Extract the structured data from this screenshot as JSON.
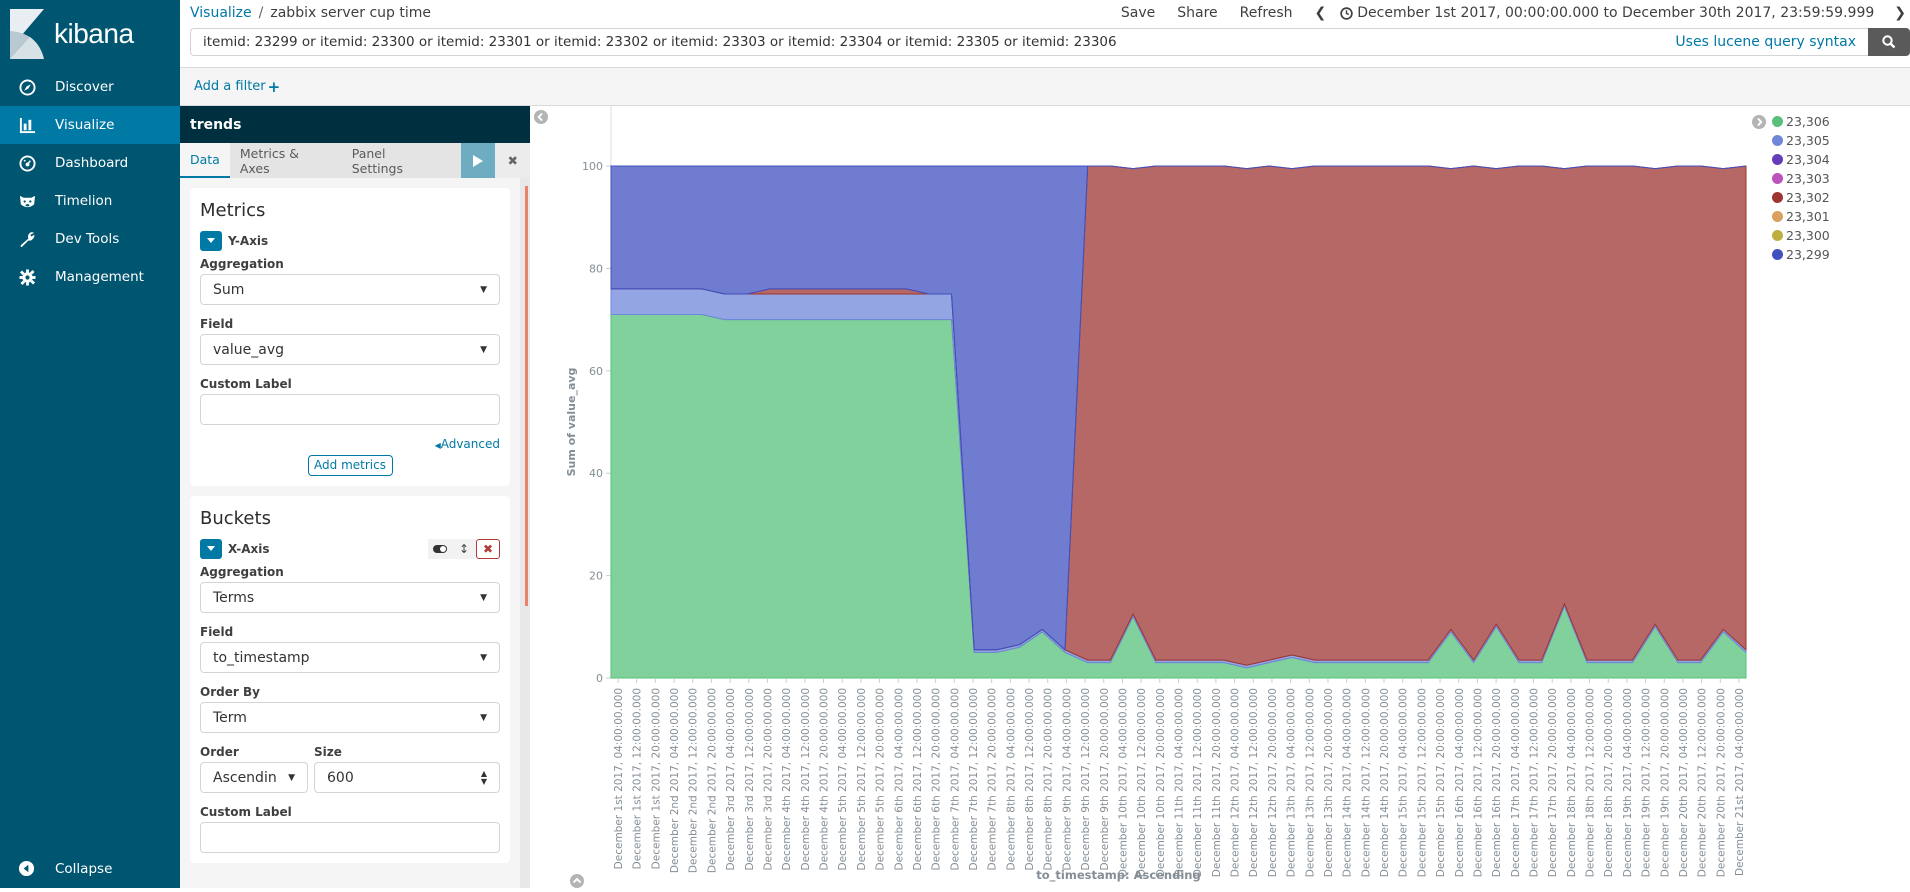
{
  "sidebar": {
    "brand": "kibana",
    "items": [
      {
        "label": "Discover",
        "icon": "compass-icon",
        "active": false
      },
      {
        "label": "Visualize",
        "icon": "bar-chart-icon",
        "active": true
      },
      {
        "label": "Dashboard",
        "icon": "dashboard-icon",
        "active": false
      },
      {
        "label": "Timelion",
        "icon": "timelion-icon",
        "active": false
      },
      {
        "label": "Dev Tools",
        "icon": "wrench-icon",
        "active": false
      },
      {
        "label": "Management",
        "icon": "gear-icon",
        "active": false
      }
    ],
    "collapse_label": "Collapse"
  },
  "topbar": {
    "breadcrumb_root": "Visualize",
    "breadcrumb_sep": "/",
    "breadcrumb_current": "zabbix server cup time",
    "save": "Save",
    "share": "Share",
    "refresh": "Refresh",
    "time_range": "December 1st 2017, 00:00:00.000 to December 30th 2017, 23:59:59.999"
  },
  "query": {
    "value": "itemid: 23299  or itemid: 23300 or itemid: 23301 or itemid: 23302 or itemid: 23303 or itemid: 23304 or itemid: 23305 or itemid: 23306",
    "syntax_hint": "Uses lucene query syntax"
  },
  "filter": {
    "add_label": "Add a filter",
    "add_icon": "+"
  },
  "editor": {
    "title": "trends",
    "tabs": [
      {
        "label": "Data",
        "active": true
      },
      {
        "label": "Metrics & Axes",
        "active": false
      },
      {
        "label": "Panel Settings",
        "active": false
      }
    ],
    "metrics": {
      "heading": "Metrics",
      "agg_title": "Y-Axis",
      "aggregation_label": "Aggregation",
      "aggregation_value": "Sum",
      "field_label": "Field",
      "field_value": "value_avg",
      "custom_label_label": "Custom Label",
      "custom_label_value": "",
      "advanced": "Advanced",
      "add_metrics": "Add metrics"
    },
    "buckets": {
      "heading": "Buckets",
      "agg_title": "X-Axis",
      "aggregation_label": "Aggregation",
      "aggregation_value": "Terms",
      "field_label": "Field",
      "field_value": "to_timestamp",
      "order_by_label": "Order By",
      "order_by_value": "Term",
      "order_label": "Order",
      "order_value": "Ascendin",
      "size_label": "Size",
      "size_value": "600",
      "custom_label_label": "Custom Label"
    }
  },
  "legend": [
    {
      "label": "23,306",
      "color": "#57c17b"
    },
    {
      "label": "23,305",
      "color": "#6f87d8"
    },
    {
      "label": "23,304",
      "color": "#663db8"
    },
    {
      "label": "23,303",
      "color": "#bc52bc"
    },
    {
      "label": "23,302",
      "color": "#9e3533"
    },
    {
      "label": "23,301",
      "color": "#daa05d"
    },
    {
      "label": "23,300",
      "color": "#bfaf40"
    },
    {
      "label": "23,299",
      "color": "#4050bf"
    }
  ],
  "chart_data": {
    "type": "area",
    "stacked": true,
    "title": "",
    "xlabel": "to_timestamp: Ascending",
    "ylabel": "Sum of value_avg",
    "ylim": [
      0,
      100
    ],
    "yticks": [
      0,
      20,
      40,
      60,
      80,
      100
    ],
    "grid": false,
    "legend_position": "right",
    "x_tick_labels": [
      "December 1st 2017, 04:00:00.000",
      "December 1st 2017, 12:00:00.000",
      "December 1st 2017, 20:00:00.000",
      "December 2nd 2017, 04:00:00.000",
      "December 2nd 2017, 12:00:00.000",
      "December 2nd 2017, 20:00:00.000",
      "December 3rd 2017, 04:00:00.000",
      "December 3rd 2017, 12:00:00.000",
      "December 3rd 2017, 20:00:00.000",
      "December 4th 2017, 04:00:00.000",
      "December 4th 2017, 12:00:00.000",
      "December 4th 2017, 20:00:00.000",
      "December 5th 2017, 04:00:00.000",
      "December 5th 2017, 12:00:00.000",
      "December 5th 2017, 20:00:00.000",
      "December 6th 2017, 04:00:00.000",
      "December 6th 2017, 12:00:00.000",
      "December 6th 2017, 20:00:00.000",
      "December 7th 2017, 04:00:00.000",
      "December 7th 2017, 12:00:00.000",
      "December 7th 2017, 20:00:00.000",
      "December 8th 2017, 04:00:00.000",
      "December 8th 2017, 12:00:00.000",
      "December 8th 2017, 20:00:00.000",
      "December 9th 2017, 04:00:00.000",
      "December 9th 2017, 12:00:00.000",
      "December 9th 2017, 20:00:00.000",
      "December 10th 2017, 04:00:00.000",
      "December 10th 2017, 12:00:00.000",
      "December 10th 2017, 20:00:00.000",
      "December 11th 2017, 04:00:00.000",
      "December 11th 2017, 12:00:00.000",
      "December 11th 2017, 20:00:00.000",
      "December 12th 2017, 04:00:00.000",
      "December 12th 2017, 12:00:00.000",
      "December 12th 2017, 20:00:00.000",
      "December 13th 2017, 04:00:00.000",
      "December 13th 2017, 12:00:00.000",
      "December 13th 2017, 20:00:00.000",
      "December 14th 2017, 04:00:00.000",
      "December 14th 2017, 12:00:00.000",
      "December 14th 2017, 20:00:00.000",
      "December 15th 2017, 04:00:00.000",
      "December 15th 2017, 12:00:00.000",
      "December 15th 2017, 20:00:00.000",
      "December 16th 2017, 04:00:00.000",
      "December 16th 2017, 12:00:00.000",
      "December 16th 2017, 20:00:00.000",
      "December 17th 2017, 04:00:00.000",
      "December 17th 2017, 12:00:00.000",
      "December 17th 2017, 20:00:00.000",
      "December 18th 2017, 04:00:00.000",
      "December 18th 2017, 12:00:00.000",
      "December 18th 2017, 20:00:00.000",
      "December 19th 2017, 04:00:00.000",
      "December 19th 2017, 12:00:00.000",
      "December 19th 2017, 20:00:00.000",
      "December 20th 2017, 04:00:00.000",
      "December 20th 2017, 12:00:00.000",
      "December 20th 2017, 20:00:00.000",
      "December 21st 2017, 04:00:00.000"
    ],
    "x": [
      0,
      2,
      4,
      6,
      8,
      10,
      12,
      14,
      16,
      18,
      20,
      22,
      24,
      26,
      28,
      30,
      32,
      34,
      36,
      38,
      40,
      42,
      44,
      46,
      48,
      50,
      52,
      54,
      56,
      58,
      60,
      62,
      64,
      66,
      68,
      70,
      72,
      74,
      76,
      78,
      80,
      82,
      84,
      86,
      88,
      90,
      92,
      94,
      96,
      98,
      100
    ],
    "x_note": "x is percent of plotted time span (Dec 1 ~00:00 to Dec 21 ~08:00); values approximate stacked layer heights",
    "series": [
      {
        "name": "23,306",
        "color": "#57c17b",
        "values": [
          71,
          71,
          71,
          71,
          71,
          70,
          70,
          70,
          70,
          70,
          70,
          70,
          70,
          70,
          70,
          70,
          5,
          5,
          6,
          9,
          5,
          3,
          3,
          12,
          3,
          3,
          3,
          3,
          2,
          3,
          4,
          3,
          3,
          3,
          3,
          3,
          3,
          9,
          3,
          10,
          3,
          3,
          14,
          3,
          3,
          3,
          10,
          3,
          3,
          9,
          5
        ]
      },
      {
        "name": "23,305",
        "color": "#6f87d8",
        "values": [
          5,
          5,
          5,
          5,
          5,
          5,
          5,
          5,
          5,
          5,
          5,
          5,
          5,
          5,
          5,
          5,
          0.5,
          0.5,
          0.5,
          0.5,
          0.5,
          0.5,
          0.5,
          0.5,
          0.5,
          0.5,
          0.5,
          0.5,
          0.5,
          0.5,
          0.5,
          0.5,
          0.5,
          0.5,
          0.5,
          0.5,
          0.5,
          0.5,
          0.5,
          0.5,
          0.5,
          0.5,
          0.5,
          0.5,
          0.5,
          0.5,
          0.5,
          0.5,
          0.5,
          0.5,
          0.5
        ]
      },
      {
        "name": "23,304",
        "color": "#663db8",
        "values": [
          0,
          0,
          0,
          0,
          0,
          0,
          0,
          0,
          0,
          0,
          0,
          0,
          0,
          0,
          0,
          0,
          0,
          0,
          0,
          0,
          0,
          0,
          0,
          0,
          0,
          0,
          0,
          0,
          0,
          0,
          0,
          0,
          0,
          0,
          0,
          0,
          0,
          0,
          0,
          0,
          0,
          0,
          0,
          0,
          0,
          0,
          0,
          0,
          0,
          0,
          0
        ]
      },
      {
        "name": "23,303",
        "color": "#bc52bc",
        "values": [
          0,
          0,
          0,
          0,
          0,
          0,
          0,
          0,
          0,
          0,
          0,
          0,
          0,
          0,
          0,
          0,
          0,
          0,
          0,
          0,
          0,
          0,
          0,
          0,
          0,
          0,
          0,
          0,
          0,
          0,
          0,
          0,
          0,
          0,
          0,
          0,
          0,
          0,
          0,
          0,
          0,
          0,
          0,
          0,
          0,
          0,
          0,
          0,
          0,
          0,
          0
        ]
      },
      {
        "name": "23,302",
        "color": "#9e3533",
        "values": [
          0,
          0,
          0,
          0,
          0,
          0,
          0,
          1,
          1,
          1,
          1,
          1,
          1,
          1,
          0,
          0,
          0,
          0,
          0,
          0,
          0,
          96.5,
          96.5,
          87,
          96.5,
          96.5,
          96.5,
          96.5,
          97,
          96.5,
          95,
          96.5,
          96.5,
          96.5,
          96.5,
          96.5,
          96.5,
          90,
          96.5,
          89,
          96.5,
          96.5,
          85,
          96.5,
          96.5,
          96.5,
          89,
          96.5,
          96.5,
          90,
          94.5
        ]
      },
      {
        "name": "23,301",
        "color": "#daa05d",
        "values": [
          0,
          0,
          0,
          0,
          0,
          0,
          0,
          0,
          0,
          0,
          0,
          0,
          0,
          0,
          0,
          0,
          0,
          0,
          0,
          0,
          0,
          0,
          0,
          0,
          0,
          0,
          0,
          0,
          0,
          0,
          0,
          0,
          0,
          0,
          0,
          0,
          0,
          0,
          0,
          0,
          0,
          0,
          0,
          0,
          0,
          0,
          0,
          0,
          0,
          0,
          0
        ]
      },
      {
        "name": "23,300",
        "color": "#bfaf40",
        "values": [
          0,
          0,
          0,
          0,
          0,
          0,
          0,
          0,
          0,
          0,
          0,
          0,
          0,
          0,
          0,
          0,
          0,
          0,
          0,
          0,
          0,
          0,
          0,
          0,
          0,
          0,
          0,
          0,
          0,
          0,
          0,
          0,
          0,
          0,
          0,
          0,
          0,
          0,
          0,
          0,
          0,
          0,
          0,
          0,
          0,
          0,
          0,
          0,
          0,
          0,
          0
        ]
      },
      {
        "name": "23,299",
        "color": "#4050bf",
        "values": [
          24,
          24,
          24,
          24,
          24,
          25,
          25,
          24,
          24,
          24,
          24,
          24,
          24,
          24,
          25,
          25,
          94.5,
          94.5,
          93.5,
          90.5,
          94.5,
          0,
          0,
          0,
          0,
          0,
          0,
          0,
          0,
          0,
          0,
          0,
          0,
          0,
          0,
          0,
          0,
          0,
          0,
          0,
          0,
          0,
          0,
          0,
          0,
          0,
          0,
          0,
          0,
          0,
          0
        ]
      }
    ]
  }
}
